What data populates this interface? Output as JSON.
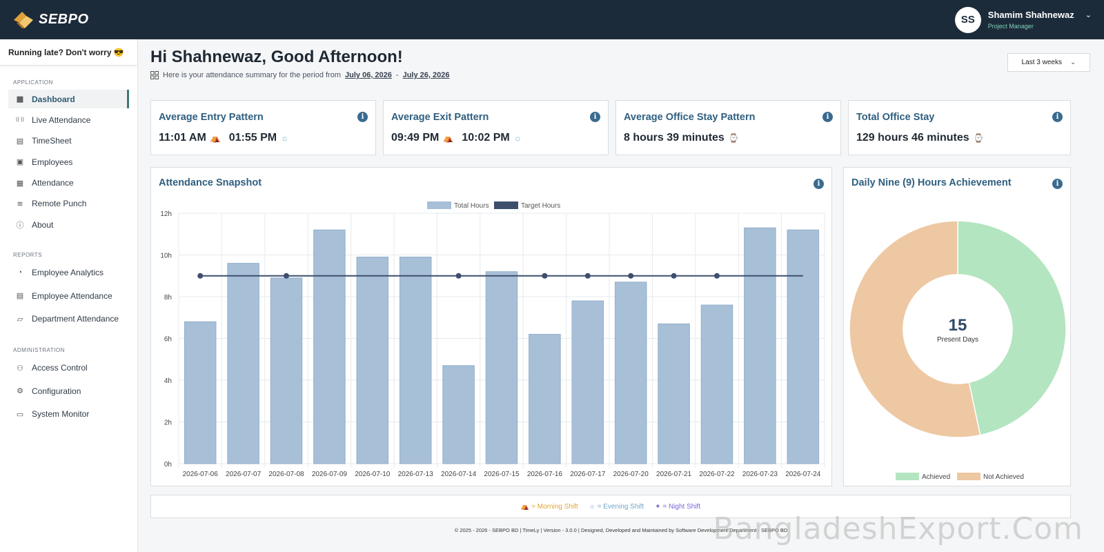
{
  "app": {
    "brand": "SEBPO"
  },
  "user": {
    "initials": "SS",
    "name": "Shamim Shahnewaz",
    "role": "Project Manager"
  },
  "sidebar": {
    "late_note": "Running late? Don't worry 😎",
    "sections": [
      {
        "title": "APPLICATION",
        "items": [
          {
            "label": "Dashboard",
            "icon": "grid-icon",
            "active": true
          },
          {
            "label": "Live Attendance",
            "icon": "broadcast-icon"
          },
          {
            "label": "TimeSheet",
            "icon": "file-icon"
          },
          {
            "label": "Employees",
            "icon": "id-badge-icon"
          },
          {
            "label": "Attendance",
            "icon": "calendar-icon"
          },
          {
            "label": "Remote Punch",
            "icon": "wifi-icon"
          },
          {
            "label": "About",
            "icon": "info-circle-icon"
          }
        ]
      },
      {
        "title": "REPORTS",
        "items": [
          {
            "label": "Employee Analytics",
            "icon": "pie-icon"
          },
          {
            "label": "Employee Attendance",
            "icon": "report-icon"
          },
          {
            "label": "Department Attendance",
            "icon": "department-icon"
          }
        ]
      },
      {
        "title": "ADMINISTRATION",
        "items": [
          {
            "label": "Access Control",
            "icon": "users-icon"
          },
          {
            "label": "Configuration",
            "icon": "gear-icon"
          },
          {
            "label": "System Monitor",
            "icon": "monitor-icon"
          }
        ]
      }
    ]
  },
  "header": {
    "greeting": "Hi Shahnewaz, Good Afternoon!",
    "period_prefix": "Here is your attendance summary for the period from",
    "start_date": "July 06, 2026",
    "separator": "-",
    "end_date": "July 26, 2026",
    "range_selected": "Last 3 weeks"
  },
  "stats": [
    {
      "title": "Average Entry Pattern",
      "values": [
        "11:01 AM",
        "01:55 PM"
      ],
      "icons": [
        "morning",
        "evening"
      ]
    },
    {
      "title": "Average Exit Pattern",
      "values": [
        "09:49 PM",
        "10:02 PM"
      ],
      "icons": [
        "morning",
        "evening"
      ]
    },
    {
      "title": "Average Office Stay Pattern",
      "values": [
        "8 hours 39 minutes"
      ],
      "icons": [
        "watch"
      ]
    },
    {
      "title": "Total Office Stay",
      "values": [
        "129 hours 46 minutes"
      ],
      "icons": [
        "watch"
      ]
    }
  ],
  "snapshot": {
    "title": "Attendance Snapshot",
    "legend": [
      "Total Hours",
      "Target Hours"
    ]
  },
  "chart_data": [
    {
      "type": "bar",
      "title": "Attendance Snapshot",
      "categories": [
        "2026-07-06",
        "2026-07-07",
        "2026-07-08",
        "2026-07-09",
        "2026-07-10",
        "2026-07-13",
        "2026-07-14",
        "2026-07-15",
        "2026-07-16",
        "2026-07-17",
        "2026-07-20",
        "2026-07-21",
        "2026-07-22",
        "2026-07-23",
        "2026-07-24"
      ],
      "series": [
        {
          "name": "Total Hours",
          "type": "bar",
          "values": [
            6.8,
            9.6,
            8.9,
            11.2,
            9.9,
            9.9,
            4.7,
            9.2,
            6.2,
            7.8,
            8.7,
            6.7,
            7.6,
            11.3,
            11.2
          ]
        },
        {
          "name": "Target Hours",
          "type": "line",
          "values": [
            9,
            9,
            9,
            9,
            9,
            9,
            9,
            9,
            9,
            9,
            9,
            9,
            9,
            9,
            9
          ],
          "markers_at": [
            "2026-07-06",
            "2026-07-08",
            "2026-07-14",
            "2026-07-16",
            "2026-07-17",
            "2026-07-20",
            "2026-07-21",
            "2026-07-22"
          ]
        }
      ],
      "yticks": [
        "0h",
        "2h",
        "4h",
        "6h",
        "8h",
        "10h",
        "12h"
      ],
      "ylim": [
        0,
        12
      ],
      "legend_position": "top",
      "colors": {
        "bar": "#a7bfd7",
        "line": "#3e4f6e"
      }
    },
    {
      "type": "pie",
      "title": "Daily Nine (9) Hours Achievement",
      "labels": [
        "Achieved",
        "Not Achieved"
      ],
      "values": [
        7,
        8
      ],
      "center_value": "15",
      "center_label": "Present Days",
      "colors": [
        "#b3e5c0",
        "#edc8a3"
      ],
      "legend_position": "bottom"
    }
  ],
  "legend_bar": [
    {
      "label": "= Morning Shift",
      "color": "#e0a534",
      "icon": "sunrise-icon"
    },
    {
      "label": "= Evening Shift",
      "color": "#6fa6c9",
      "icon": "sun-icon"
    },
    {
      "label": "= Night Shift",
      "color": "#7b64d6",
      "icon": "stars-icon"
    }
  ],
  "footer": "© 2025 - 2026 - SEBPO BD | TimeLy | Version - 3.0.0 | Designed, Developed and Maintained by Software Development Department - SEBPO BD",
  "watermark": "BangladeshExport.Com"
}
